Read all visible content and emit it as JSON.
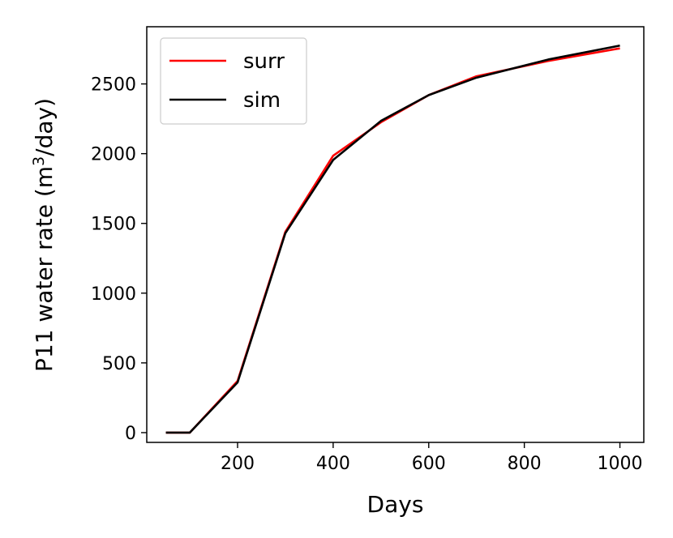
{
  "chart_data": {
    "type": "line",
    "xlabel": "Days",
    "ylabel_main": "P11 water rate (m",
    "ylabel_sup": "3",
    "ylabel_tail": "/day)",
    "xlim": [
      10,
      1050
    ],
    "ylim": [
      -70,
      2910
    ],
    "x_ticks": [
      200,
      400,
      600,
      800,
      1000
    ],
    "y_ticks": [
      0,
      500,
      1000,
      1500,
      2000,
      2500
    ],
    "x": [
      50,
      100,
      200,
      300,
      400,
      500,
      600,
      700,
      850,
      1000
    ],
    "series": [
      {
        "name": "surr",
        "color": "#ff0000",
        "values": [
          0,
          0,
          370,
          1440,
          1985,
          2225,
          2420,
          2555,
          2665,
          2755
        ]
      },
      {
        "name": "sim",
        "color": "#000000",
        "values": [
          0,
          0,
          360,
          1430,
          1955,
          2235,
          2420,
          2545,
          2675,
          2775
        ]
      }
    ],
    "legend_position": "top-left",
    "grid": false
  }
}
